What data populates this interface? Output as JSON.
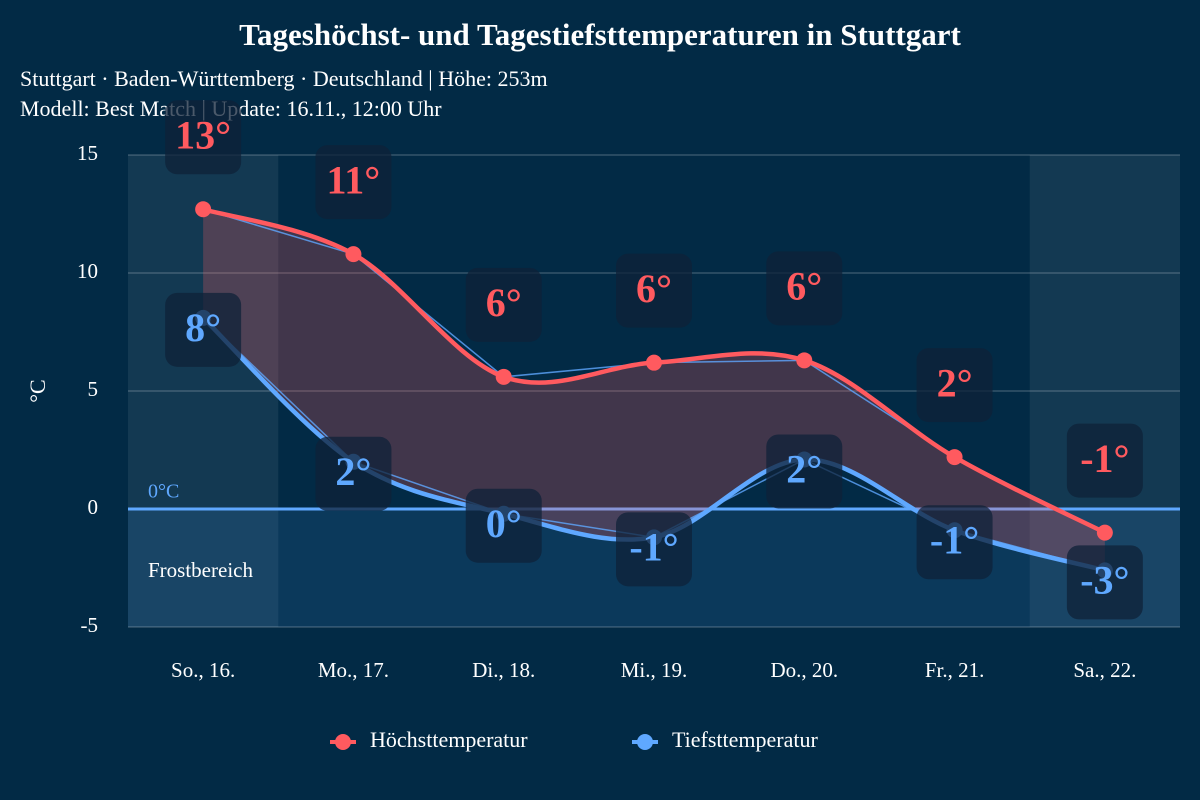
{
  "chart_data": {
    "type": "line",
    "title": "Tageshöchst- und Tagestiefsttemperaturen in Stuttgart",
    "subtitle": [
      "Stuttgart · Baden-Württemberg · Deutschland | Höhe: 253m",
      "Modell: Best Match | Update: 16.11., 12:00 Uhr"
    ],
    "y_label": "°C",
    "categories": [
      "So., 16.",
      "Mo., 17.",
      "Di., 18.",
      "Mi., 19.",
      "Do., 20.",
      "Fr., 21.",
      "Sa., 22."
    ],
    "series": [
      {
        "name": "Höchsttemperatur",
        "color": "#ff5a5f",
        "values": [
          12.7,
          10.8,
          5.6,
          6.2,
          6.3,
          2.2,
          -1.0
        ],
        "value_labels": [
          "13°",
          "11°",
          "6°",
          "6°",
          "6°",
          "2°",
          "-1°"
        ]
      },
      {
        "name": "Tiefsttemperatur",
        "color": "#5fa8ff",
        "values": [
          8.1,
          2.0,
          -0.2,
          -1.2,
          2.1,
          -0.9,
          -2.6
        ],
        "value_labels": [
          "8°",
          "2°",
          "0°",
          "-1°",
          "2°",
          "-1°",
          "-3°"
        ]
      }
    ],
    "ylim": [
      -5,
      15
    ],
    "yticks": [
      -5,
      0,
      5,
      10,
      15
    ],
    "grid": true,
    "annotations": {
      "zero_line": "0°C",
      "frost_zone": "Frostbereich"
    }
  }
}
